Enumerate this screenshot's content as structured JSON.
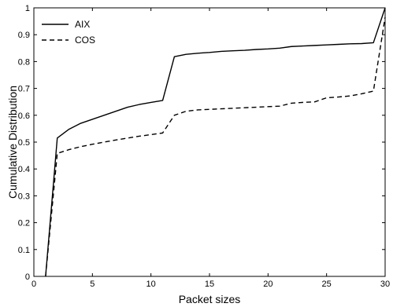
{
  "chart_data": {
    "type": "line",
    "title": "",
    "xlabel": "Packet sizes",
    "ylabel": "Cumulative Distribution",
    "xlim": [
      0,
      30
    ],
    "ylim": [
      0,
      1
    ],
    "xticks": [
      0,
      5,
      10,
      15,
      20,
      25,
      30
    ],
    "yticks": [
      0,
      0.1,
      0.2,
      0.3,
      0.4,
      0.5,
      0.6,
      0.7,
      0.8,
      0.9,
      1
    ],
    "xtick_labels": [
      "0",
      "5",
      "10",
      "15",
      "20",
      "25",
      "30"
    ],
    "ytick_labels": [
      "0",
      "0.1",
      "0.2",
      "0.3",
      "0.4",
      "0.5",
      "0.6",
      "0.7",
      "0.8",
      "0.9",
      "1"
    ],
    "grid": false,
    "legend": {
      "position": "top-left",
      "entries": [
        "AIX",
        "COS"
      ]
    },
    "series": [
      {
        "name": "AIX",
        "line_style": "solid",
        "color": "#000000",
        "x": [
          1,
          2,
          3,
          4,
          5,
          6,
          7,
          8,
          9,
          10,
          11,
          12,
          13,
          14,
          15,
          16,
          17,
          18,
          19,
          20,
          21,
          22,
          23,
          24,
          25,
          26,
          27,
          28,
          29,
          30
        ],
        "y": [
          0.0,
          0.515,
          0.548,
          0.57,
          0.585,
          0.6,
          0.615,
          0.63,
          0.64,
          0.648,
          0.655,
          0.818,
          0.827,
          0.831,
          0.834,
          0.838,
          0.84,
          0.842,
          0.845,
          0.847,
          0.85,
          0.856,
          0.858,
          0.86,
          0.862,
          0.864,
          0.866,
          0.867,
          0.87,
          1.0
        ]
      },
      {
        "name": "COS",
        "line_style": "dashed",
        "color": "#000000",
        "x": [
          1,
          2,
          3,
          4,
          5,
          6,
          7,
          8,
          9,
          10,
          11,
          12,
          13,
          14,
          15,
          16,
          17,
          18,
          19,
          20,
          21,
          22,
          23,
          24,
          25,
          26,
          27,
          28,
          29,
          30
        ],
        "y": [
          0.0,
          0.458,
          0.472,
          0.483,
          0.492,
          0.5,
          0.508,
          0.515,
          0.522,
          0.528,
          0.534,
          0.6,
          0.615,
          0.62,
          0.622,
          0.624,
          0.626,
          0.628,
          0.63,
          0.632,
          0.634,
          0.645,
          0.648,
          0.65,
          0.665,
          0.668,
          0.672,
          0.68,
          0.69,
          0.965
        ]
      }
    ]
  }
}
